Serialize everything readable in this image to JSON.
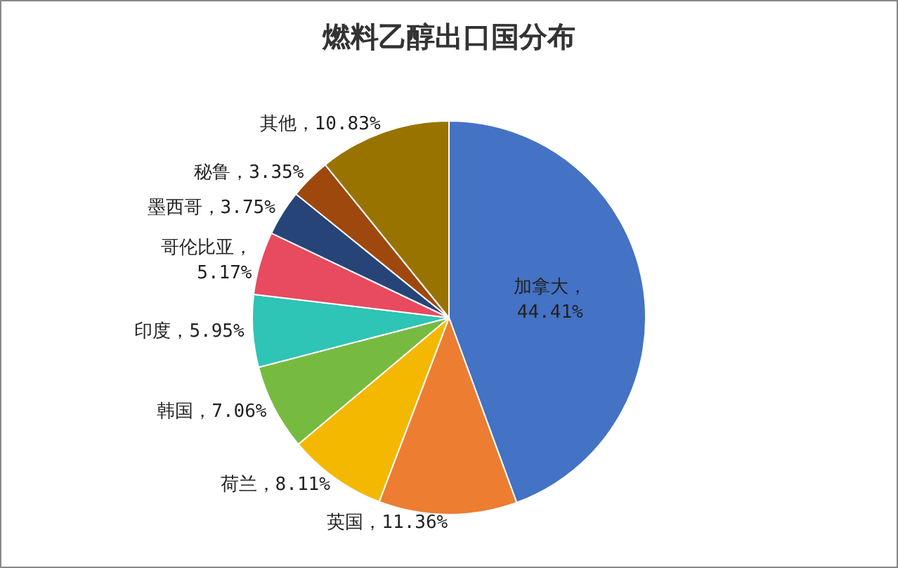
{
  "chart_data": {
    "type": "pie",
    "title": "燃料乙醇出口国分布",
    "categories": [
      "加拿大",
      "英国",
      "荷兰",
      "韩国",
      "印度",
      "哥伦比亚",
      "墨西哥",
      "秘鲁",
      "其他"
    ],
    "values": [
      44.41,
      11.36,
      8.11,
      7.06,
      5.95,
      5.17,
      3.75,
      3.35,
      10.83
    ],
    "value_labels": [
      "，\n44.41%",
      "，11.36%",
      "，8.11%",
      "，7.06%",
      "，5.95%",
      "，\n5.17%",
      "，3.75%",
      "，3.35%",
      "，10.83%"
    ],
    "colors": [
      "#4472c4",
      "#ed7d31",
      "#f5b800",
      "#76bb40",
      "#2ec4b6",
      "#e84a5f",
      "#264478",
      "#9e480e",
      "#997300"
    ],
    "legend": false
  }
}
